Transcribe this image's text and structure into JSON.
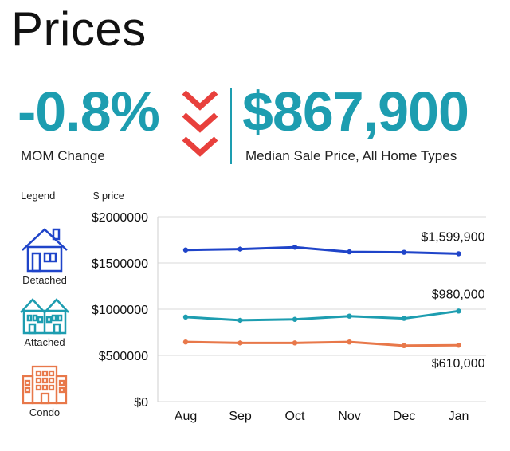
{
  "title": "Prices",
  "mom": {
    "value": "-0.8%",
    "label": "MOM Change"
  },
  "median": {
    "value": "$867,900",
    "label": "Median Sale Price, All Home Types"
  },
  "legend": {
    "title": "Legend",
    "items": [
      {
        "label": "Detached",
        "icon": "house-icon",
        "color": "#1f44c9"
      },
      {
        "label": "Attached",
        "icon": "townhouse-icon",
        "color": "#1d9db0"
      },
      {
        "label": "Condo",
        "icon": "building-icon",
        "color": "#e8784a"
      }
    ]
  },
  "colors": {
    "accent": "#1d9db0",
    "down_arrow": "#e8403c",
    "grid": "#d9d9d9"
  },
  "chart_data": {
    "type": "line",
    "ylabel": "$ price",
    "ylim": [
      0,
      2000000
    ],
    "y_ticks": [
      0,
      500000,
      1000000,
      1500000,
      2000000
    ],
    "y_tick_labels": [
      "$0",
      "$500000",
      "$1000000",
      "$1500000",
      "$2000000"
    ],
    "categories": [
      "Aug",
      "Sep",
      "Oct",
      "Nov",
      "Dec",
      "Jan"
    ],
    "series": [
      {
        "name": "Detached",
        "color": "#1f44c9",
        "values": [
          1640000,
          1650000,
          1670000,
          1620000,
          1615000,
          1599900
        ],
        "end_label": "$1,599,900"
      },
      {
        "name": "Attached",
        "color": "#1d9db0",
        "values": [
          915000,
          880000,
          890000,
          925000,
          900000,
          980000
        ],
        "end_label": "$980,000"
      },
      {
        "name": "Condo",
        "color": "#e8784a",
        "values": [
          645000,
          635000,
          635000,
          645000,
          605000,
          610000
        ],
        "end_label": "$610,000"
      }
    ]
  }
}
